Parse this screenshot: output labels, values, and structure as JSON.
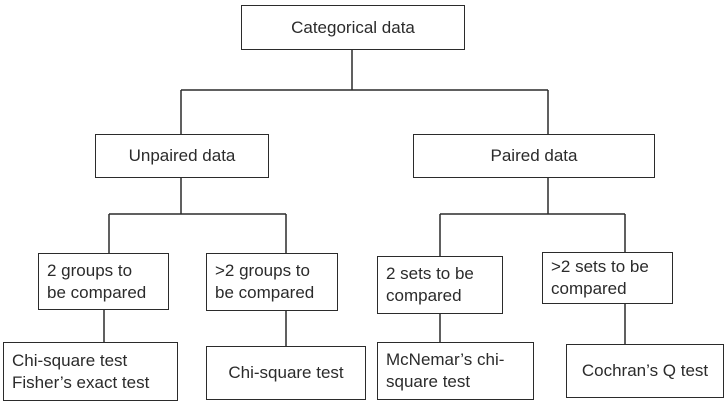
{
  "diagram": {
    "root": "Categorical data",
    "branches": {
      "unpaired": "Unpaired data",
      "paired": "Paired data"
    },
    "conditions": {
      "unpaired_two": [
        "2 groups to",
        "be compared"
      ],
      "unpaired_more": [
        ">2 groups to",
        "be compared"
      ],
      "paired_two": [
        "2 sets to be",
        "compared"
      ],
      "paired_more": [
        ">2 sets to be",
        "compared"
      ]
    },
    "tests": {
      "unpaired_two": [
        "Chi-square test",
        "Fisher’s exact test"
      ],
      "unpaired_more": "Chi-square test",
      "paired_two": [
        "McNemar’s chi-",
        "square test"
      ],
      "paired_more": "Cochran’s Q test"
    }
  },
  "colors": {
    "line": "#2b2b2b",
    "text": "#2b2b2b",
    "background": "#ffffff"
  }
}
